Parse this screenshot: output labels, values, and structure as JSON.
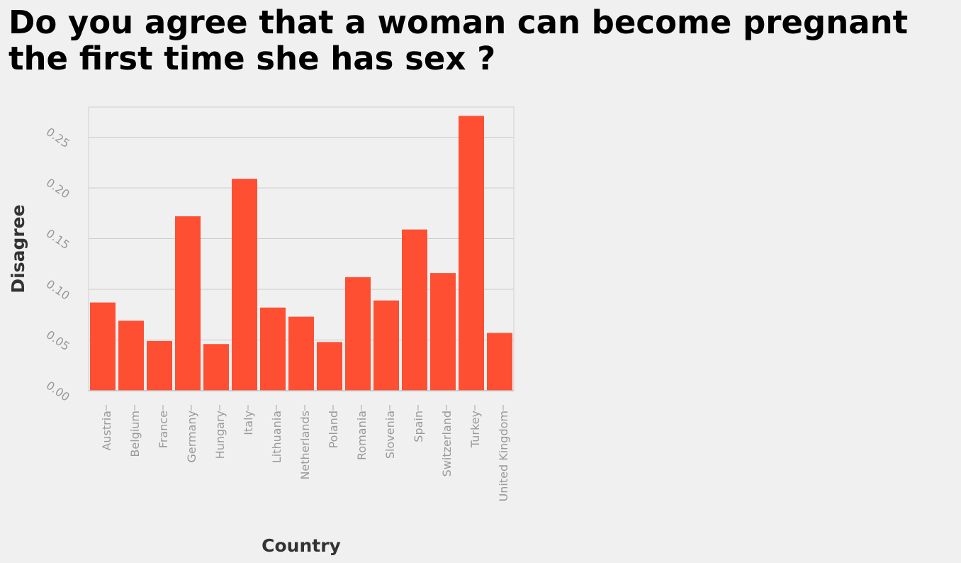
{
  "chart_data": {
    "type": "bar",
    "title": "Do you agree that a woman can become pregnant the first time she has sex ?",
    "xlabel": "Country",
    "ylabel": "Disagree",
    "categories": [
      "Austria",
      "Belgium",
      "France",
      "Germany",
      "Hungary",
      "Italy",
      "Lithuania",
      "Netherlands",
      "Poland",
      "Romania",
      "Slovenia",
      "Spain",
      "Switzerland",
      "Turkey",
      "United Kingdom"
    ],
    "values": [
      0.087,
      0.069,
      0.049,
      0.172,
      0.046,
      0.209,
      0.082,
      0.073,
      0.048,
      0.112,
      0.089,
      0.159,
      0.116,
      0.271,
      0.057
    ],
    "ylim": [
      0,
      0.28
    ],
    "yticks": [
      "0.00",
      "0.05",
      "0.10",
      "0.15",
      "0.20",
      "0.25"
    ],
    "grid": true,
    "legend": "none",
    "bar_color": "#ff4f33"
  }
}
